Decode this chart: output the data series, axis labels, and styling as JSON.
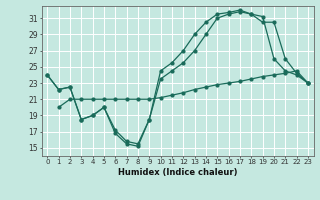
{
  "xlabel": "Humidex (Indice chaleur)",
  "bg_color": "#c5e8e0",
  "grid_color": "#ffffff",
  "line_color": "#1a6b5a",
  "xlim": [
    -0.5,
    23.5
  ],
  "ylim": [
    14.0,
    32.5
  ],
  "xticks": [
    0,
    1,
    2,
    3,
    4,
    5,
    6,
    7,
    8,
    9,
    10,
    11,
    12,
    13,
    14,
    15,
    16,
    17,
    18,
    19,
    20,
    21,
    22,
    23
  ],
  "yticks": [
    15,
    17,
    19,
    21,
    23,
    25,
    27,
    29,
    31
  ],
  "line1_x": [
    0,
    1,
    2,
    3,
    4,
    5,
    6,
    7,
    8,
    9,
    10,
    11,
    12,
    13,
    14,
    15,
    16,
    17,
    18,
    19,
    20,
    21,
    22,
    23
  ],
  "line1_y": [
    24.0,
    22.2,
    22.5,
    18.5,
    19.0,
    20.0,
    16.8,
    15.5,
    15.2,
    18.5,
    24.5,
    25.5,
    27.0,
    29.0,
    30.5,
    31.5,
    31.7,
    32.0,
    31.5,
    30.5,
    30.5,
    26.0,
    24.2,
    23.0
  ],
  "line2_x": [
    1,
    2,
    3,
    4,
    5,
    6,
    7,
    8,
    9,
    10,
    11,
    12,
    13,
    14,
    15,
    16,
    17,
    18,
    19,
    20,
    21,
    22,
    23
  ],
  "line2_y": [
    20.0,
    21.0,
    21.0,
    21.0,
    21.0,
    21.0,
    21.0,
    21.0,
    21.0,
    21.2,
    21.5,
    21.8,
    22.2,
    22.5,
    22.8,
    23.0,
    23.2,
    23.5,
    23.8,
    24.0,
    24.2,
    24.5,
    23.0
  ],
  "line3_x": [
    0,
    1,
    2,
    3,
    4,
    5,
    6,
    7,
    8,
    9,
    10,
    11,
    12,
    13,
    14,
    15,
    16,
    17,
    18,
    19,
    20,
    21,
    22,
    23
  ],
  "line3_y": [
    24.0,
    22.2,
    22.5,
    18.5,
    19.0,
    20.0,
    17.2,
    15.8,
    15.5,
    18.5,
    23.5,
    24.5,
    25.5,
    27.0,
    29.0,
    31.0,
    31.5,
    31.8,
    31.5,
    31.2,
    26.0,
    24.5,
    24.0,
    23.0
  ]
}
